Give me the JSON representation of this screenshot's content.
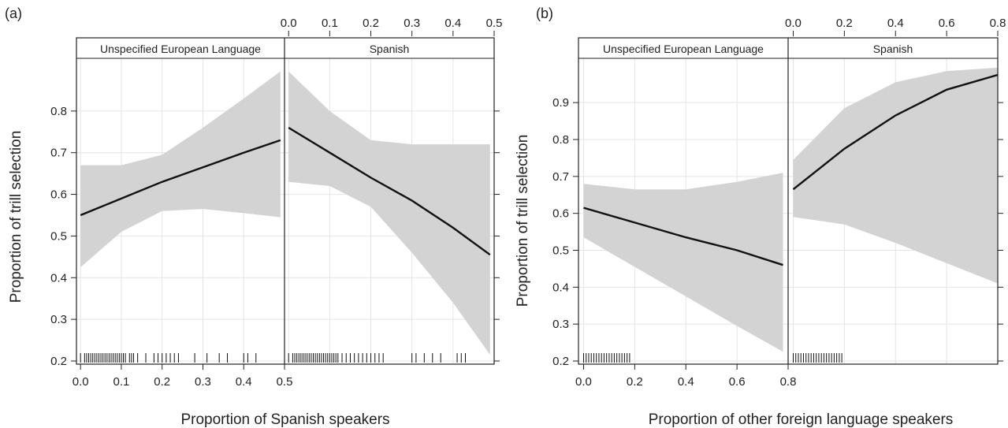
{
  "panels": [
    {
      "label": "(a)",
      "xlabel": "Proportion of Spanish speakers",
      "ylabel": "Proportion of trill selection",
      "strip_labels": [
        "Unspecified European Language",
        "Spanish"
      ]
    },
    {
      "label": "(b)",
      "xlabel": "Proportion of other foreign language speakers",
      "ylabel": "Proportion of trill selection",
      "strip_labels": [
        "Unspecified European Language",
        "Spanish"
      ]
    }
  ],
  "colors": {
    "band": "#d3d3d3",
    "line": "#111111",
    "grid": "#e4e4e4"
  },
  "chart_data": [
    {
      "type": "line",
      "panel": "(a)",
      "xlabel": "Proportion of Spanish speakers",
      "ylabel": "Proportion of trill selection",
      "x_ticks": [
        0.0,
        0.1,
        0.2,
        0.3,
        0.4,
        0.5
      ],
      "x_tick_labels": [
        "0.0",
        "0.1",
        "0.2",
        "0.3",
        "0.4",
        "0.5"
      ],
      "y_ticks": [
        0.2,
        0.3,
        0.4,
        0.5,
        0.6,
        0.7,
        0.8
      ],
      "y_tick_labels": [
        "0.2",
        "0.3",
        "0.4",
        "0.5",
        "0.6",
        "0.7",
        "0.8"
      ],
      "xlim": [
        -0.01,
        0.5
      ],
      "ylim": [
        0.2,
        0.9
      ],
      "grid": true,
      "facets": [
        {
          "strip": "Unspecified European Language",
          "x": [
            0.0,
            0.1,
            0.2,
            0.3,
            0.4,
            0.49
          ],
          "fit": [
            0.55,
            0.59,
            0.63,
            0.665,
            0.7,
            0.73
          ],
          "lower": [
            0.425,
            0.51,
            0.56,
            0.565,
            0.555,
            0.545
          ],
          "upper": [
            0.67,
            0.67,
            0.695,
            0.76,
            0.83,
            0.895
          ],
          "rug": [
            0.0,
            0.01,
            0.015,
            0.02,
            0.025,
            0.03,
            0.035,
            0.04,
            0.045,
            0.05,
            0.055,
            0.06,
            0.065,
            0.07,
            0.075,
            0.08,
            0.085,
            0.09,
            0.095,
            0.1,
            0.105,
            0.11,
            0.12,
            0.125,
            0.13,
            0.14,
            0.16,
            0.18,
            0.19,
            0.2,
            0.21,
            0.22,
            0.23,
            0.24,
            0.28,
            0.31,
            0.34,
            0.36,
            0.4,
            0.41,
            0.43
          ]
        },
        {
          "strip": "Spanish",
          "x": [
            0.0,
            0.1,
            0.2,
            0.3,
            0.4,
            0.49
          ],
          "fit": [
            0.76,
            0.7,
            0.64,
            0.585,
            0.52,
            0.455
          ],
          "lower": [
            0.63,
            0.62,
            0.57,
            0.46,
            0.34,
            0.215
          ],
          "upper": [
            0.895,
            0.8,
            0.73,
            0.72,
            0.72,
            0.72
          ],
          "rug": [
            0.0,
            0.01,
            0.015,
            0.02,
            0.025,
            0.03,
            0.035,
            0.04,
            0.045,
            0.05,
            0.055,
            0.06,
            0.065,
            0.07,
            0.075,
            0.08,
            0.085,
            0.09,
            0.095,
            0.1,
            0.105,
            0.11,
            0.115,
            0.12,
            0.13,
            0.14,
            0.15,
            0.16,
            0.17,
            0.18,
            0.19,
            0.2,
            0.21,
            0.22,
            0.23,
            0.3,
            0.31,
            0.33,
            0.35,
            0.37,
            0.41,
            0.42,
            0.43
          ]
        }
      ]
    },
    {
      "type": "line",
      "panel": "(b)",
      "xlabel": "Proportion of other foreign language speakers",
      "ylabel": "Proportion of trill selection",
      "x_ticks": [
        0.0,
        0.2,
        0.4,
        0.6,
        0.8
      ],
      "x_tick_labels": [
        "0.0",
        "0.2",
        "0.4",
        "0.6",
        "0.8"
      ],
      "y_ticks": [
        0.2,
        0.3,
        0.4,
        0.5,
        0.6,
        0.7,
        0.8,
        0.9
      ],
      "y_tick_labels": [
        "0.2",
        "0.3",
        "0.4",
        "0.5",
        "0.6",
        "0.7",
        "0.8",
        "0.9"
      ],
      "xlim": [
        -0.02,
        0.8
      ],
      "ylim": [
        0.2,
        0.99
      ],
      "grid": true,
      "facets": [
        {
          "strip": "Unspecified European Language",
          "x": [
            0.0,
            0.2,
            0.4,
            0.6,
            0.78
          ],
          "fit": [
            0.615,
            0.575,
            0.535,
            0.5,
            0.46
          ],
          "lower": [
            0.535,
            0.455,
            0.375,
            0.295,
            0.225
          ],
          "upper": [
            0.68,
            0.665,
            0.665,
            0.685,
            0.71
          ],
          "rug": [
            0.0,
            0.01,
            0.02,
            0.03,
            0.04,
            0.05,
            0.06,
            0.07,
            0.08,
            0.09,
            0.1,
            0.11,
            0.12,
            0.13,
            0.14,
            0.15,
            0.16,
            0.17,
            0.18
          ]
        },
        {
          "strip": "Spanish",
          "x": [
            0.0,
            0.2,
            0.4,
            0.6,
            0.8
          ],
          "fit": [
            0.665,
            0.775,
            0.865,
            0.935,
            0.975
          ],
          "lower": [
            0.59,
            0.57,
            0.52,
            0.465,
            0.41
          ],
          "upper": [
            0.745,
            0.885,
            0.955,
            0.985,
            0.995
          ],
          "rug": [
            0.0,
            0.01,
            0.02,
            0.03,
            0.04,
            0.05,
            0.06,
            0.07,
            0.08,
            0.09,
            0.1,
            0.11,
            0.12,
            0.13,
            0.14,
            0.15,
            0.16,
            0.17,
            0.18,
            0.19
          ]
        }
      ]
    }
  ]
}
